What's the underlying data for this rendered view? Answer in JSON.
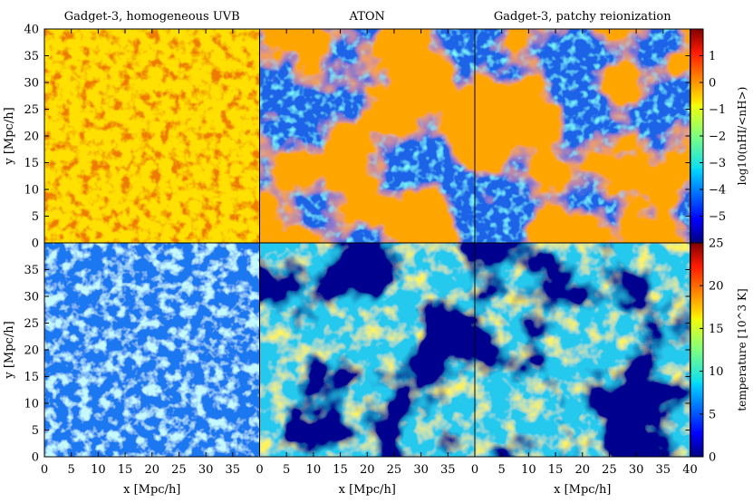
{
  "chart_data": {
    "type": "heatmap",
    "panel_titles": [
      "Gadget-3, homogeneous UVB",
      "ATON",
      "Gadget-3, patchy reionization"
    ],
    "x_label": "x [Mpc/h]",
    "y_label": "y [Mpc/h]",
    "xlim": [
      0,
      40
    ],
    "ylim": [
      0,
      40
    ],
    "x_ticks_first": [
      "0",
      "5",
      "10",
      "15",
      "20",
      "25",
      "30",
      "35"
    ],
    "x_ticks_last": [
      "0",
      "5",
      "10",
      "15",
      "20",
      "25",
      "30",
      "35",
      "40"
    ],
    "y_ticks_top": [
      "0",
      "5",
      "10",
      "15",
      "20",
      "25",
      "30",
      "35",
      "40"
    ],
    "y_ticks_bottom": [
      "0",
      "5",
      "10",
      "15",
      "20",
      "25",
      "30",
      "35"
    ],
    "rows": [
      {
        "quantity": "neutral hydrogen fraction",
        "colorbar_label": "log10(nHI/<nH>)",
        "colorbar_range": [
          -6,
          2
        ],
        "colorbar_ticks": [
          "1",
          "0",
          "−1",
          "−2",
          "−3",
          "−4",
          "−5"
        ],
        "colorbar_tick_values": [
          1,
          0,
          -1,
          -2,
          -3,
          -4,
          -5
        ]
      },
      {
        "quantity": "temperature",
        "colorbar_label": "temperature [10^3 K]",
        "colorbar_range": [
          0,
          25
        ],
        "colorbar_ticks": [
          "25",
          "20",
          "15",
          "10",
          "5",
          "0"
        ],
        "colorbar_tick_values": [
          25,
          20,
          15,
          10,
          5,
          0
        ]
      }
    ],
    "colormap": "jet"
  }
}
